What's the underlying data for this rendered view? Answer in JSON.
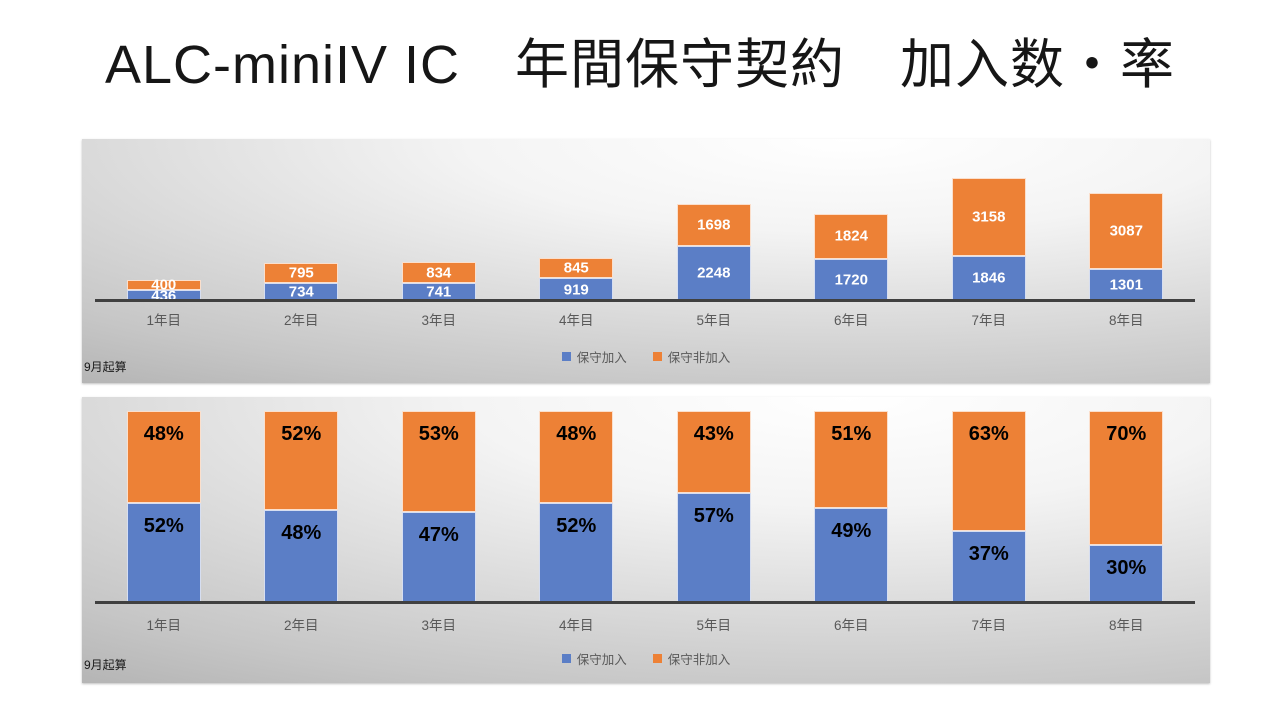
{
  "slide": {
    "title": "ALC-miniIV IC　年間保守契約　加入数・率"
  },
  "colors": {
    "maintenance_join": "#5b7ec6",
    "maintenance_not_join": "#ed8136",
    "axis": "#404040",
    "category_label": "#595959",
    "legend_text": "#595959"
  },
  "chart_data": [
    {
      "type": "bar",
      "variant": "stacked-counts",
      "note": "9月起算",
      "categories": [
        "1年目",
        "2年目",
        "3年目",
        "4年目",
        "5年目",
        "6年目",
        "7年目",
        "8年目"
      ],
      "series": [
        {
          "name": "保守加入",
          "color_key": "maintenance_join",
          "label_suffix": "",
          "values": [
            436,
            734,
            741,
            919,
            2248,
            1720,
            1846,
            1301
          ]
        },
        {
          "name": "保守非加入",
          "color_key": "maintenance_not_join",
          "label_suffix": "",
          "values": [
            400,
            795,
            834,
            845,
            1698,
            1824,
            3158,
            3087
          ]
        }
      ],
      "legend_position": "bottom",
      "value_labels": "center",
      "grid": false,
      "ylim": [
        0,
        5004
      ]
    },
    {
      "type": "bar",
      "variant": "stacked-100pct",
      "note": "9月起算",
      "categories": [
        "1年目",
        "2年目",
        "3年目",
        "4年目",
        "5年目",
        "6年目",
        "7年目",
        "8年目"
      ],
      "series": [
        {
          "name": "保守加入",
          "color_key": "maintenance_join",
          "label_suffix": "%",
          "values": [
            52,
            48,
            47,
            52,
            57,
            49,
            37,
            30
          ]
        },
        {
          "name": "保守非加入",
          "color_key": "maintenance_not_join",
          "label_suffix": "%",
          "values": [
            48,
            52,
            53,
            48,
            43,
            51,
            63,
            70
          ]
        }
      ],
      "legend_position": "bottom",
      "value_labels": "inside-end",
      "grid": false,
      "ylim": [
        0,
        100
      ]
    }
  ]
}
